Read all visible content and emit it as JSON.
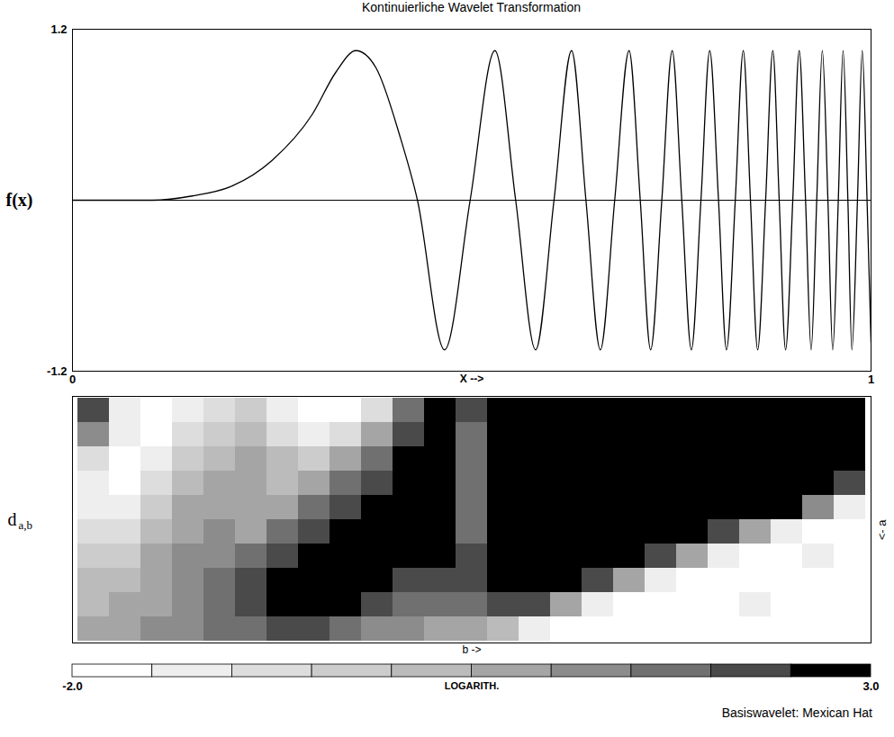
{
  "chart_data": [
    {
      "type": "line",
      "title": "Kontinuierliche Wavelet Transformation",
      "x_label": "X -->",
      "y_label": "f(x)",
      "x": [
        0,
        0.1,
        0.15,
        0.2,
        0.25,
        0.3,
        0.33,
        0.355,
        0.38,
        0.41,
        0.432,
        0.466,
        0.498,
        0.529,
        0.555,
        0.58,
        0.603,
        0.625,
        0.643,
        0.661,
        0.679,
        0.697,
        0.711,
        0.724,
        0.738,
        0.751,
        0.763,
        0.775,
        0.787,
        0.798,
        0.809,
        0.819,
        0.83,
        0.84,
        0.849,
        0.858,
        0.868,
        0.877,
        0.885,
        0.893,
        0.902,
        0.91,
        0.918,
        0.925,
        0.932,
        0.939,
        0.946,
        0.952,
        0.959,
        0.965,
        0.971,
        0.976,
        0.983,
        0.989,
        0.995,
        1
      ],
      "values": [
        0,
        0,
        0.03,
        0.1,
        0.28,
        0.6,
        0.9,
        1.05,
        0.93,
        0.45,
        0,
        -1.05,
        0,
        1.05,
        0,
        -1.05,
        0,
        1.05,
        0,
        -1.05,
        0,
        1.05,
        0,
        -1.05,
        0,
        1.05,
        0,
        -1.05,
        0,
        1.05,
        0,
        -1.05,
        0,
        1.05,
        0,
        -1.05,
        0,
        1.05,
        0,
        -1.05,
        0,
        1.05,
        0,
        -1.05,
        0,
        1.05,
        0,
        -1.05,
        0,
        1.05,
        0,
        -1.05,
        0,
        1.05,
        0,
        -1.0
      ],
      "xlim": [
        0,
        1
      ],
      "ylim": [
        -1.2,
        1.2
      ],
      "xticks": [
        0,
        1
      ],
      "yticks": [
        -1.2,
        1.2
      ],
      "color": "#000000",
      "hline": 0,
      "grid": false
    },
    {
      "type": "heatmap",
      "y_label": "d",
      "y_label_subscript": "a,b",
      "x_label": "b ->",
      "side_label": "<- a",
      "tick_labels": false,
      "cells": [
        [
          2,
          -1.5,
          -2,
          -1.5,
          -1,
          -0.5,
          -1.5,
          -2,
          -2,
          -1,
          1.5,
          2.5,
          2,
          2.5,
          2.5,
          2.5,
          2.8,
          2.8,
          3,
          3,
          3,
          3,
          3,
          3,
          3
        ],
        [
          1,
          -1.5,
          -2,
          -1,
          -0.5,
          0,
          -1,
          -1.5,
          -1,
          0.5,
          2,
          2.5,
          1.5,
          2.5,
          2.5,
          2.5,
          2.8,
          2.8,
          3,
          3,
          3,
          3,
          3,
          3,
          3
        ],
        [
          -1,
          -2,
          -1.5,
          -0.5,
          0.3,
          0.5,
          0,
          -0.5,
          0.5,
          1.5,
          2.5,
          2.5,
          1.5,
          2.5,
          2.5,
          2.5,
          2.8,
          2.8,
          3,
          3,
          3,
          3,
          3,
          3,
          2.8
        ],
        [
          -1.5,
          -2,
          -1,
          0,
          0.5,
          0.5,
          0,
          0.5,
          1.5,
          2,
          2.5,
          2.5,
          1.5,
          2.5,
          2.5,
          2.5,
          2.8,
          2.8,
          3,
          3,
          3,
          3,
          3,
          2.8,
          2
        ],
        [
          -1.5,
          -1.5,
          -0.5,
          0.5,
          0.8,
          0.5,
          0.5,
          1.5,
          2,
          2.5,
          2.5,
          2.5,
          1.5,
          2.5,
          2.5,
          2.5,
          2.8,
          2.8,
          3,
          3,
          3,
          2.8,
          2.5,
          1,
          -1.5
        ],
        [
          -1,
          -1,
          0,
          0.8,
          1,
          0.8,
          1.5,
          2,
          2.5,
          2.5,
          2.5,
          2.5,
          1.5,
          2.5,
          2.5,
          2.5,
          2.8,
          2.8,
          2.8,
          2.5,
          2,
          0.5,
          -1.5,
          -2,
          -2
        ],
        [
          -0.5,
          -0.5,
          0.5,
          1,
          1,
          1.5,
          2,
          2.5,
          2.5,
          2.5,
          2.5,
          2.5,
          2,
          2.5,
          2.5,
          2.5,
          2.5,
          2.5,
          2,
          0.5,
          -1.5,
          -2,
          -2,
          -1.5,
          -2
        ],
        [
          0,
          0,
          0.5,
          1,
          1.5,
          2,
          2.5,
          2.5,
          2.5,
          2.5,
          2,
          2,
          2,
          2.5,
          2.5,
          2.5,
          2,
          0.5,
          -1.5,
          -2,
          -2,
          -2,
          -2,
          -2,
          -2
        ],
        [
          0,
          0.5,
          0.5,
          1,
          1.5,
          2,
          2.5,
          2.5,
          2.5,
          2,
          1.5,
          1.5,
          1.5,
          2,
          2,
          0.5,
          -1.5,
          -2,
          -2,
          -2,
          -2,
          -1.5,
          -2,
          -2,
          -2
        ],
        [
          0.5,
          0.5,
          1,
          1,
          1.5,
          1.5,
          2,
          2,
          1.5,
          1,
          1,
          0.5,
          0.5,
          0,
          -1.5,
          -2,
          -2,
          -2,
          -2,
          -2,
          -2,
          -2,
          -2,
          -2,
          -2
        ]
      ],
      "colorbar": {
        "range": [
          -2,
          3
        ],
        "ticks": [
          {
            "value": -2,
            "label": "-2.0"
          },
          {
            "value": 3,
            "label": "3.0"
          }
        ],
        "bins": [
          -2,
          -1.5,
          -1,
          -0.5,
          0,
          0.5,
          1,
          1.5,
          2,
          2.5,
          3
        ],
        "colors": [
          "#ffffff",
          "#eeeeee",
          "#dddddd",
          "#cccccc",
          "#bbbbbb",
          "#a5a5a5",
          "#8c8c8c",
          "#707070",
          "#4a4a4a",
          "#000000"
        ],
        "label": "LOGARITH."
      },
      "annotation": "Basiswavelet: Mexican Hat"
    }
  ]
}
